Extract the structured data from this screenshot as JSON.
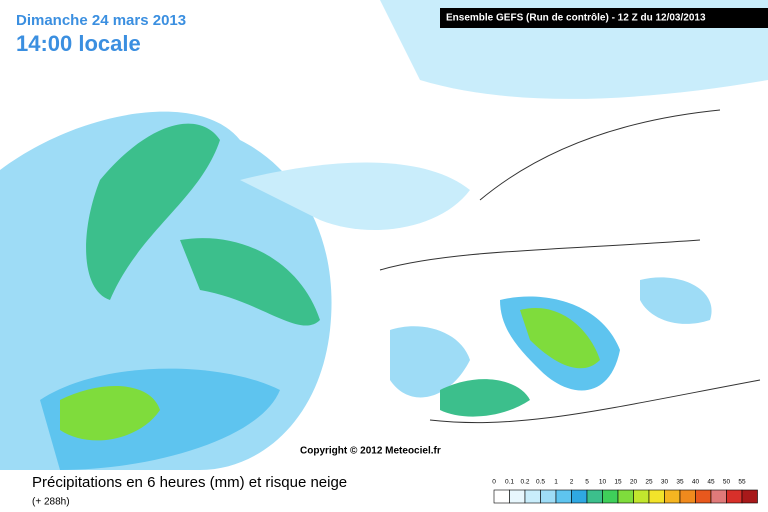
{
  "header": {
    "date": "Dimanche 24 mars 2013",
    "time": "14:00 locale",
    "run": "Ensemble GEFS (Run de contrôle)  -  12 Z du 12/03/2013"
  },
  "copyright": "Copyright © 2012 Meteociel.fr",
  "caption": {
    "title": "Précipitations en 6 heures (mm) et risque neige",
    "subtitle": "(+ 288h)"
  },
  "legend": [
    {
      "label": "0",
      "color": "#ffffff"
    },
    {
      "label": "0.1",
      "color": "#e8f7fd"
    },
    {
      "label": "0.2",
      "color": "#c9edfb"
    },
    {
      "label": "0.5",
      "color": "#9edcf6"
    },
    {
      "label": "1",
      "color": "#5ec4ef"
    },
    {
      "label": "2",
      "color": "#2fa8e2"
    },
    {
      "label": "5",
      "color": "#3cbf8c"
    },
    {
      "label": "10",
      "color": "#3fcf5a"
    },
    {
      "label": "15",
      "color": "#7fdc3c"
    },
    {
      "label": "20",
      "color": "#c2e62e"
    },
    {
      "label": "25",
      "color": "#f2e32a"
    },
    {
      "label": "30",
      "color": "#f5b521"
    },
    {
      "label": "35",
      "color": "#f08a1d"
    },
    {
      "label": "40",
      "color": "#e8581d"
    },
    {
      "label": "45",
      "color": "#e07a7a"
    },
    {
      "label": "50",
      "color": "#d8302a"
    },
    {
      "label": "55",
      "color": "#a8191a"
    }
  ]
}
